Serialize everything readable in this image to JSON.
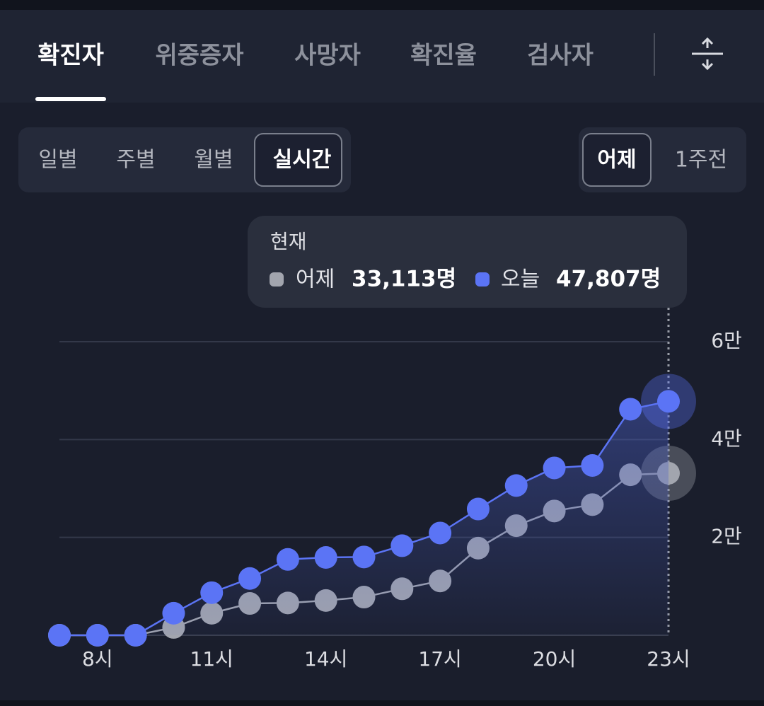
{
  "tabs": {
    "items": [
      "확진자",
      "위중증자",
      "사망자",
      "확진율",
      "검사자"
    ],
    "selected": 0
  },
  "period_tabs": {
    "items": [
      "일별",
      "주별",
      "월별",
      "실시간"
    ],
    "selected": 3
  },
  "compare_tabs": {
    "items": [
      "어제",
      "1주전"
    ],
    "selected": 0
  },
  "chart_data": {
    "type": "line",
    "x": [
      7,
      8,
      9,
      10,
      11,
      12,
      13,
      14,
      15,
      16,
      17,
      18,
      19,
      20,
      21,
      22,
      23
    ],
    "series": [
      {
        "name": "어제",
        "color": "#a2a5ae",
        "values": [
          0,
          0,
          0,
          1600,
          4500,
          6500,
          6600,
          7100,
          7800,
          9500,
          11100,
          17800,
          22400,
          25400,
          26700,
          32800,
          33113
        ]
      },
      {
        "name": "오늘",
        "color": "#5b74f5",
        "values": [
          0,
          0,
          0,
          4500,
          8700,
          11600,
          15500,
          15900,
          16000,
          18300,
          20900,
          25800,
          30600,
          34200,
          34700,
          46200,
          47807
        ]
      }
    ],
    "xlim": [
      7,
      23
    ],
    "xticks": [
      {
        "value": 8,
        "label": "8시"
      },
      {
        "value": 11,
        "label": "11시"
      },
      {
        "value": 14,
        "label": "14시"
      },
      {
        "value": 17,
        "label": "17시"
      },
      {
        "value": 20,
        "label": "20시"
      },
      {
        "value": 23,
        "label": "23시"
      }
    ],
    "ylim": [
      0,
      60000
    ],
    "yticks": [
      {
        "value": 20000,
        "label": "2만"
      },
      {
        "value": 40000,
        "label": "4만"
      },
      {
        "value": 60000,
        "label": "6만"
      }
    ],
    "grid": true,
    "tooltip": {
      "title": "현재",
      "labels": [
        "33,113명",
        "47,807명"
      ]
    }
  }
}
